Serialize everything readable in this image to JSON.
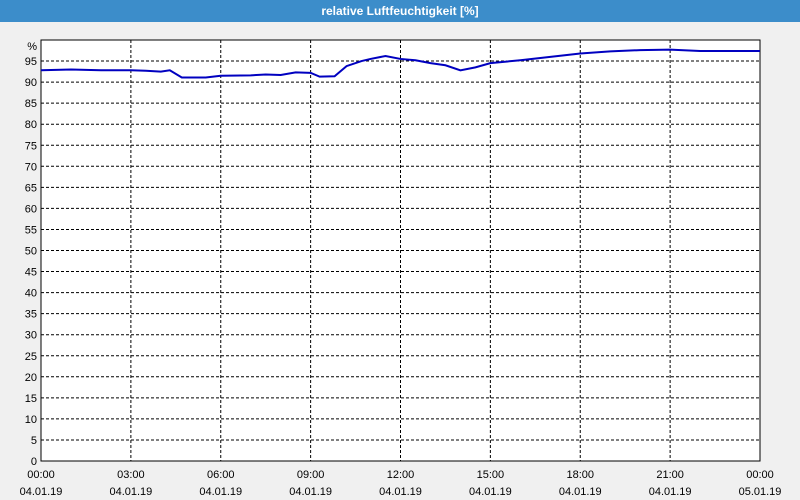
{
  "window_title": "relative Luftfeuchtigkeit [%]",
  "chart_data": {
    "type": "line",
    "y_label": "%",
    "xlim": [
      0,
      24
    ],
    "xticks": [
      {
        "value": 0,
        "label": "00:00\n04.01.19"
      },
      {
        "value": 3,
        "label": "03:00\n04.01.19"
      },
      {
        "value": 6,
        "label": "06:00\n04.01.19"
      },
      {
        "value": 9,
        "label": "09:00\n04.01.19"
      },
      {
        "value": 12,
        "label": "12:00\n04.01.19"
      },
      {
        "value": 15,
        "label": "15:00\n04.01.19"
      },
      {
        "value": 18,
        "label": "18:00\n04.01.19"
      },
      {
        "value": 21,
        "label": "21:00\n04.01.19"
      },
      {
        "value": 24,
        "label": "00:00\n05.01.19"
      }
    ],
    "ylim": [
      0,
      100
    ],
    "yticks": [
      0,
      5,
      10,
      15,
      20,
      25,
      30,
      35,
      40,
      45,
      50,
      55,
      60,
      65,
      70,
      75,
      80,
      85,
      90,
      95
    ],
    "grid": true,
    "series": [
      {
        "name": "relative Luftfeuchtigkeit",
        "color": "#0000c0",
        "x": [
          0,
          1,
          2,
          3,
          3.5,
          4,
          4.3,
          4.7,
          5.5,
          6,
          7,
          7.5,
          8,
          8.5,
          9,
          9.3,
          9.8,
          10.2,
          10.7,
          11,
          11.5,
          12,
          12.5,
          13,
          13.5,
          14,
          14.5,
          15,
          16,
          17,
          18,
          19,
          20,
          21,
          22,
          23,
          24
        ],
        "values": [
          92.8,
          93,
          92.8,
          92.8,
          92.7,
          92.5,
          92.8,
          91.1,
          91.1,
          91.5,
          91.6,
          91.8,
          91.7,
          92.3,
          92.2,
          91.3,
          91.4,
          93.8,
          95,
          95.5,
          96.2,
          95.5,
          95.2,
          94.5,
          94,
          92.8,
          93.5,
          94.5,
          95.2,
          96,
          96.8,
          97.3,
          97.6,
          97.7,
          97.4,
          97.4,
          97.4
        ]
      }
    ]
  }
}
